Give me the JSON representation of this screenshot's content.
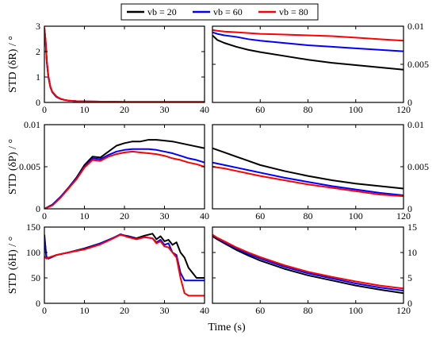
{
  "legend": [
    "vb = 20",
    "vb = 60",
    "vb = 80"
  ],
  "colors": {
    "vb = 20": "#000000",
    "vb = 60": "#0000ff",
    "vb = 80": "#ff0000"
  },
  "xlabel": "Time (s)",
  "chart_data": [
    {
      "id": "R-early",
      "type": "line",
      "ylabel": "STD (δR) / °",
      "xlim": [
        0,
        40
      ],
      "ylim": [
        0,
        3
      ],
      "xticks": [
        0,
        10,
        20,
        30,
        40
      ],
      "yticks": [
        0,
        1,
        2,
        3
      ],
      "tick_labels_y": [
        "0",
        "1",
        "2",
        "3"
      ],
      "series": [
        {
          "name": "vb = 20",
          "x": [
            0,
            0.3,
            0.6,
            1,
            1.5,
            2,
            3,
            4,
            5,
            6,
            8,
            10,
            15,
            20,
            25,
            30,
            35,
            40
          ],
          "y": [
            2.9,
            2.4,
            1.6,
            1.0,
            0.6,
            0.4,
            0.22,
            0.14,
            0.1,
            0.07,
            0.05,
            0.04,
            0.03,
            0.02,
            0.02,
            0.02,
            0.02,
            0.02
          ]
        },
        {
          "name": "vb = 60",
          "x": [
            0,
            0.3,
            0.6,
            1,
            1.5,
            2,
            3,
            4,
            5,
            6,
            8,
            10,
            15,
            20,
            25,
            30,
            35,
            40
          ],
          "y": [
            2.9,
            2.4,
            1.6,
            1.0,
            0.6,
            0.4,
            0.22,
            0.14,
            0.1,
            0.07,
            0.05,
            0.04,
            0.03,
            0.02,
            0.02,
            0.02,
            0.02,
            0.02
          ]
        },
        {
          "name": "vb = 80",
          "x": [
            0,
            0.3,
            0.6,
            1,
            1.5,
            2,
            3,
            4,
            5,
            6,
            8,
            10,
            15,
            20,
            25,
            30,
            35,
            40
          ],
          "y": [
            2.95,
            2.45,
            1.65,
            1.05,
            0.62,
            0.42,
            0.24,
            0.15,
            0.1,
            0.07,
            0.05,
            0.04,
            0.03,
            0.02,
            0.02,
            0.02,
            0.02,
            0.02
          ]
        }
      ]
    },
    {
      "id": "R-late",
      "type": "line",
      "xlim": [
        40,
        120
      ],
      "ylim": [
        0,
        0.01
      ],
      "xticks": [
        60,
        80,
        100,
        120
      ],
      "yticks": [
        0,
        0.005,
        0.01
      ],
      "tick_labels_y": [
        "0",
        "0.005",
        "0.01"
      ],
      "series": [
        {
          "name": "vb = 20",
          "x": [
            40,
            42,
            45,
            50,
            55,
            60,
            70,
            80,
            90,
            100,
            110,
            120
          ],
          "y": [
            0.0088,
            0.0082,
            0.0078,
            0.0073,
            0.0069,
            0.0066,
            0.0061,
            0.0056,
            0.0052,
            0.0049,
            0.0046,
            0.0043
          ]
        },
        {
          "name": "vb = 60",
          "x": [
            40,
            42,
            45,
            50,
            55,
            60,
            70,
            80,
            90,
            100,
            110,
            120
          ],
          "y": [
            0.0092,
            0.009,
            0.0088,
            0.0086,
            0.0083,
            0.0081,
            0.0078,
            0.0075,
            0.0073,
            0.0071,
            0.0069,
            0.0067
          ]
        },
        {
          "name": "vb = 80",
          "x": [
            40,
            42,
            45,
            50,
            55,
            60,
            70,
            80,
            90,
            100,
            110,
            120
          ],
          "y": [
            0.0095,
            0.0094,
            0.0093,
            0.0092,
            0.0091,
            0.009,
            0.0089,
            0.0088,
            0.0087,
            0.0085,
            0.0083,
            0.0081
          ]
        }
      ]
    },
    {
      "id": "P-early",
      "type": "line",
      "ylabel": "STD (δP) / °",
      "xlim": [
        0,
        40
      ],
      "ylim": [
        0,
        0.01
      ],
      "xticks": [
        0,
        10,
        20,
        30,
        40
      ],
      "yticks": [
        0,
        0.005,
        0.01
      ],
      "tick_labels_y": [
        "0",
        "0.005",
        "0.01"
      ],
      "series": [
        {
          "name": "vb = 20",
          "x": [
            0,
            2,
            4,
            6,
            8,
            10,
            12,
            14,
            16,
            18,
            20,
            22,
            24,
            26,
            28,
            30,
            32,
            34,
            36,
            38,
            40
          ],
          "y": [
            0,
            0.0005,
            0.0014,
            0.0025,
            0.0037,
            0.0052,
            0.0062,
            0.0061,
            0.0068,
            0.0075,
            0.0078,
            0.008,
            0.008,
            0.0082,
            0.0082,
            0.0081,
            0.008,
            0.0078,
            0.0076,
            0.0074,
            0.0072
          ]
        },
        {
          "name": "vb = 60",
          "x": [
            0,
            2,
            4,
            6,
            8,
            10,
            12,
            14,
            16,
            18,
            20,
            22,
            24,
            26,
            28,
            30,
            32,
            34,
            36,
            38,
            40
          ],
          "y": [
            0,
            0.0005,
            0.0014,
            0.0025,
            0.0036,
            0.005,
            0.006,
            0.0059,
            0.0064,
            0.0068,
            0.007,
            0.0071,
            0.0071,
            0.0071,
            0.007,
            0.0068,
            0.0066,
            0.0063,
            0.006,
            0.0058,
            0.0055
          ]
        },
        {
          "name": "vb = 80",
          "x": [
            0,
            2,
            4,
            6,
            8,
            10,
            12,
            14,
            16,
            18,
            20,
            22,
            24,
            26,
            28,
            30,
            32,
            34,
            36,
            38,
            40
          ],
          "y": [
            0,
            0.0004,
            0.0013,
            0.0024,
            0.0035,
            0.0049,
            0.0058,
            0.0057,
            0.0062,
            0.0065,
            0.0067,
            0.0068,
            0.0067,
            0.0066,
            0.0065,
            0.0063,
            0.006,
            0.0058,
            0.0055,
            0.0053,
            0.005
          ]
        }
      ]
    },
    {
      "id": "P-late",
      "type": "line",
      "xlim": [
        40,
        120
      ],
      "ylim": [
        0,
        0.01
      ],
      "xticks": [
        60,
        80,
        100,
        120
      ],
      "yticks": [
        0,
        0.005,
        0.01
      ],
      "tick_labels_y": [
        "0",
        "0.005",
        "0.01"
      ],
      "series": [
        {
          "name": "vb = 20",
          "x": [
            40,
            45,
            50,
            55,
            60,
            70,
            80,
            90,
            100,
            110,
            120
          ],
          "y": [
            0.0072,
            0.0067,
            0.0062,
            0.0057,
            0.0052,
            0.0045,
            0.0039,
            0.0034,
            0.003,
            0.0027,
            0.0024
          ]
        },
        {
          "name": "vb = 60",
          "x": [
            40,
            45,
            50,
            55,
            60,
            70,
            80,
            90,
            100,
            110,
            120
          ],
          "y": [
            0.0055,
            0.0052,
            0.0049,
            0.0046,
            0.0043,
            0.0037,
            0.0032,
            0.0027,
            0.0023,
            0.0019,
            0.0016
          ]
        },
        {
          "name": "vb = 80",
          "x": [
            40,
            45,
            50,
            55,
            60,
            70,
            80,
            90,
            100,
            110,
            120
          ],
          "y": [
            0.005,
            0.0048,
            0.0045,
            0.0042,
            0.0039,
            0.0034,
            0.0029,
            0.0025,
            0.0021,
            0.0017,
            0.0015
          ]
        }
      ]
    },
    {
      "id": "H-early",
      "type": "line",
      "ylabel": "STD (δH) / °",
      "xlim": [
        0,
        40
      ],
      "ylim": [
        0,
        150
      ],
      "xticks": [
        0,
        10,
        20,
        30,
        40
      ],
      "yticks": [
        0,
        50,
        100,
        150
      ],
      "tick_labels_y": [
        "0",
        "50",
        "100",
        "150"
      ],
      "series": [
        {
          "name": "vb = 20",
          "x": [
            0,
            0.5,
            1,
            3,
            6,
            10,
            14,
            17,
            19,
            21,
            23,
            25,
            27,
            28,
            29,
            30,
            31,
            32,
            33,
            34,
            35,
            36,
            37,
            38,
            39,
            40
          ],
          "y": [
            135,
            90,
            88,
            95,
            100,
            108,
            118,
            128,
            135,
            132,
            128,
            133,
            137,
            126,
            132,
            122,
            125,
            115,
            120,
            100,
            90,
            70,
            60,
            50,
            50,
            50
          ]
        },
        {
          "name": "vb = 60",
          "x": [
            0,
            0.5,
            1,
            3,
            6,
            10,
            14,
            17,
            19,
            21,
            23,
            25,
            27,
            28,
            29,
            30,
            31,
            32,
            33,
            34,
            35,
            36,
            37,
            38,
            39,
            40
          ],
          "y": [
            130,
            92,
            88,
            95,
            100,
            107,
            118,
            128,
            136,
            131,
            127,
            130,
            128,
            120,
            125,
            115,
            118,
            100,
            95,
            60,
            45,
            45,
            45,
            45,
            45,
            45
          ]
        },
        {
          "name": "vb = 80",
          "x": [
            0,
            0.5,
            1,
            3,
            6,
            10,
            14,
            17,
            19,
            21,
            23,
            25,
            27,
            28,
            29,
            30,
            31,
            32,
            33,
            34,
            35,
            36,
            37,
            38,
            39,
            40
          ],
          "y": [
            92,
            88,
            90,
            95,
            100,
            106,
            116,
            127,
            135,
            130,
            126,
            130,
            128,
            118,
            122,
            112,
            110,
            100,
            90,
            50,
            20,
            15,
            15,
            15,
            15,
            15
          ]
        }
      ]
    },
    {
      "id": "H-late",
      "type": "line",
      "xlim": [
        40,
        120
      ],
      "ylim": [
        0,
        15
      ],
      "xticks": [
        60,
        80,
        100,
        120
      ],
      "yticks": [
        0,
        5,
        10,
        15
      ],
      "tick_labels_y": [
        "0",
        "5",
        "10",
        "15"
      ],
      "series": [
        {
          "name": "vb = 20",
          "x": [
            40,
            42,
            45,
            50,
            55,
            60,
            70,
            80,
            90,
            100,
            110,
            120
          ],
          "y": [
            13.2,
            12.6,
            11.8,
            10.5,
            9.4,
            8.4,
            6.8,
            5.5,
            4.5,
            3.5,
            2.7,
            2.0
          ]
        },
        {
          "name": "vb = 60",
          "x": [
            40,
            42,
            45,
            50,
            55,
            60,
            70,
            80,
            90,
            100,
            110,
            120
          ],
          "y": [
            13.4,
            12.8,
            12.0,
            10.8,
            9.7,
            8.8,
            7.2,
            5.9,
            4.9,
            3.9,
            3.1,
            2.5
          ]
        },
        {
          "name": "vb = 80",
          "x": [
            40,
            42,
            45,
            50,
            55,
            60,
            70,
            80,
            90,
            100,
            110,
            120
          ],
          "y": [
            13.5,
            12.9,
            12.2,
            11.0,
            10.0,
            9.1,
            7.5,
            6.2,
            5.2,
            4.3,
            3.5,
            2.9
          ]
        }
      ]
    }
  ]
}
